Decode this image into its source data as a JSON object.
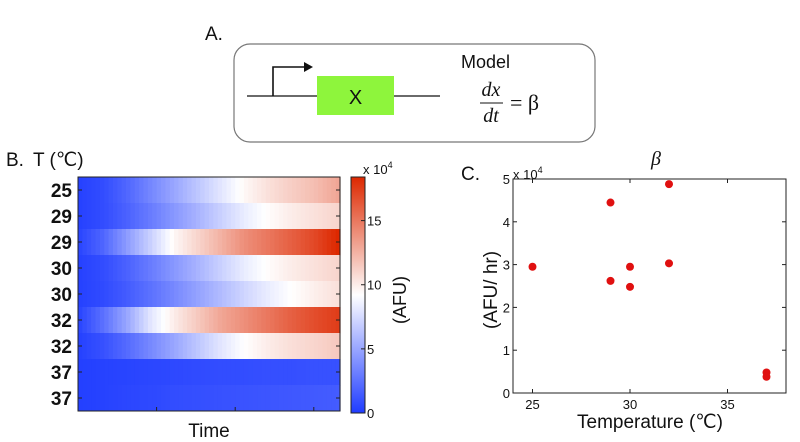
{
  "panel_a": {
    "label": "A.",
    "gene_label": "X",
    "model_title": "Model",
    "equation_numerator": "dx",
    "equation_denominator": "dt",
    "equation_rhs": "= β",
    "gene_color": "#8ef53c"
  },
  "chart_data": [
    {
      "type": "heatmap",
      "panel_label": "B.",
      "ylabel": "T (℃)",
      "xlabel": "Time",
      "row_labels": [
        "25",
        "29",
        "29",
        "30",
        "30",
        "32",
        "32",
        "37",
        "37"
      ],
      "colorbar": {
        "label": "(AFU)",
        "multiplier": "x 10",
        "exponent": "4",
        "ticks": [
          "0",
          "5",
          "10",
          "15"
        ],
        "range": [
          0,
          18.4
        ],
        "colors": {
          "low": "#1f3cff",
          "mid": "#ffffff",
          "high": "#dd2800"
        },
        "mid_value": 9.2
      },
      "values": [
        [
          0.3,
          0.8,
          2.0,
          3.5,
          5.0,
          6.5,
          8.0,
          9.5,
          10.5,
          11.3,
          12.0,
          13.0
        ],
        [
          0.3,
          0.8,
          1.8,
          3.0,
          4.3,
          5.6,
          7.0,
          8.3,
          9.3,
          10.0,
          10.5,
          11.0
        ],
        [
          0.5,
          2.0,
          4.5,
          7.0,
          9.5,
          11.0,
          12.5,
          14.0,
          15.0,
          16.0,
          17.0,
          18.4
        ],
        [
          0.3,
          0.8,
          1.8,
          3.0,
          4.3,
          5.6,
          7.0,
          8.3,
          9.3,
          10.0,
          10.5,
          11.0
        ],
        [
          0.3,
          0.7,
          1.5,
          2.5,
          3.6,
          4.8,
          6.0,
          7.2,
          8.3,
          9.2,
          9.9,
          10.5
        ],
        [
          0.5,
          2.5,
          5.0,
          8.0,
          10.0,
          11.5,
          13.0,
          14.0,
          15.0,
          16.0,
          16.8,
          17.5
        ],
        [
          0.3,
          1.0,
          2.2,
          3.6,
          5.0,
          6.5,
          8.0,
          9.2,
          10.0,
          10.6,
          11.0,
          11.5
        ],
        [
          0.2,
          0.3,
          0.4,
          0.5,
          0.6,
          0.7,
          0.8,
          0.8,
          0.9,
          0.9,
          1.0,
          1.0
        ],
        [
          0.2,
          0.3,
          0.5,
          0.6,
          0.8,
          0.9,
          1.0,
          1.1,
          1.2,
          1.3,
          1.4,
          1.5
        ]
      ]
    },
    {
      "type": "scatter",
      "panel_label": "C.",
      "title": "β",
      "xlabel": "Temperature (℃)",
      "ylabel": "(AFU/ hr)",
      "y_multiplier": "x 10",
      "y_exponent": "4",
      "xlim": [
        24,
        38
      ],
      "ylim": [
        0,
        5
      ],
      "xticks": [
        25,
        30,
        35
      ],
      "yticks": [
        0,
        1,
        2,
        3,
        4,
        5
      ],
      "grid": false,
      "marker_color": "#e01010",
      "points": [
        {
          "x": 25,
          "y": 2.95
        },
        {
          "x": 29,
          "y": 4.45
        },
        {
          "x": 29,
          "y": 2.62
        },
        {
          "x": 30,
          "y": 2.95
        },
        {
          "x": 30,
          "y": 2.48
        },
        {
          "x": 32,
          "y": 4.88
        },
        {
          "x": 32,
          "y": 3.03
        },
        {
          "x": 37,
          "y": 0.48
        },
        {
          "x": 37,
          "y": 0.38
        }
      ]
    }
  ]
}
